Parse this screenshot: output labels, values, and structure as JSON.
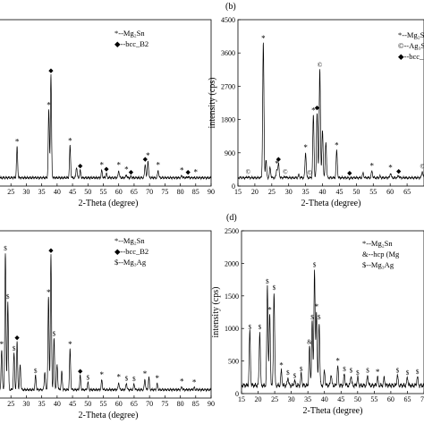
{
  "chart_data": [
    {
      "type": "line",
      "panel": "",
      "xlabel": "2-Theta (degree)",
      "ylabel": "",
      "xlim": [
        20,
        90
      ],
      "ylim": [
        0,
        4500
      ],
      "x_ticks": [
        25,
        30,
        35,
        40,
        45,
        50,
        55,
        60,
        65,
        70,
        75,
        80,
        85,
        90
      ],
      "y_ticks": [],
      "legend": [
        {
          "symbol": "*",
          "label": "*--Mg₂Sn"
        },
        {
          "symbol": "◆",
          "label": "◆--bcc_B2"
        }
      ],
      "series": [
        {
          "peaks": [
            [
              27.0,
              1050
            ],
            [
              38.0,
              3000
            ],
            [
              37.3,
              2050
            ],
            [
              44.2,
              1080
            ],
            [
              46.3,
              520
            ],
            [
              47.5,
              420
            ],
            [
              54.5,
              420
            ],
            [
              56.0,
              340
            ],
            [
              60.0,
              420
            ],
            [
              62.5,
              300
            ],
            [
              64.0,
              260
            ],
            [
              68.6,
              600
            ],
            [
              69.5,
              680
            ],
            [
              72.8,
              420
            ],
            [
              80.5,
              280
            ],
            [
              82.5,
              250
            ],
            [
              85.0,
              220
            ]
          ]
        }
      ],
      "markers": [
        {
          "symbol": "*",
          "x": 27.0
        },
        {
          "symbol": "*",
          "x": 37.3
        },
        {
          "symbol": "◆",
          "x": 38.0
        },
        {
          "symbol": "*",
          "x": 44.2
        },
        {
          "symbol": "◆",
          "x": 47.5
        },
        {
          "symbol": "*",
          "x": 54.5
        },
        {
          "symbol": "◆",
          "x": 56.0
        },
        {
          "symbol": "*",
          "x": 60.0
        },
        {
          "symbol": "*",
          "x": 62.5
        },
        {
          "symbol": "◆",
          "x": 64.0
        },
        {
          "symbol": "◆",
          "x": 68.6
        },
        {
          "symbol": "*",
          "x": 69.5
        },
        {
          "symbol": "*",
          "x": 72.8
        },
        {
          "symbol": "*",
          "x": 80.5
        },
        {
          "symbol": "◆",
          "x": 82.5
        },
        {
          "symbol": "*",
          "x": 85.0
        }
      ]
    },
    {
      "type": "line",
      "panel": "(b)",
      "xlabel": "2-Theta (degree)",
      "ylabel": "intensity (cps)",
      "xlim": [
        15,
        70
      ],
      "ylim": [
        0,
        4500
      ],
      "x_ticks": [
        15,
        20,
        25,
        30,
        35,
        40,
        45,
        50,
        55,
        60,
        65
      ],
      "y_ticks": [
        0,
        900,
        1800,
        2700,
        3600,
        4500
      ],
      "legend": [
        {
          "symbol": "*",
          "label": "*--Mg₂S"
        },
        {
          "symbol": "©",
          "label": "©--Ag₃S"
        },
        {
          "symbol": "◆",
          "label": "◆--bcc_"
        }
      ],
      "series": [
        {
          "peaks": [
            [
              18.0,
              250
            ],
            [
              22.5,
              3850
            ],
            [
              23.3,
              700
            ],
            [
              24.5,
              500
            ],
            [
              26.5,
              460
            ],
            [
              27.0,
              600
            ],
            [
              29.0,
              260
            ],
            [
              33.0,
              300
            ],
            [
              35.0,
              900
            ],
            [
              37.3,
              1900
            ],
            [
              38.4,
              2000
            ],
            [
              39.2,
              3150
            ],
            [
              40.0,
              1500
            ],
            [
              41.0,
              1200
            ],
            [
              44.2,
              950
            ],
            [
              48.0,
              200
            ],
            [
              52.0,
              350
            ],
            [
              54.6,
              400
            ],
            [
              57.0,
              260
            ],
            [
              60.1,
              350
            ],
            [
              62.5,
              280
            ],
            [
              65.0,
              220
            ],
            [
              69.5,
              400
            ]
          ]
        }
      ],
      "markers": [
        {
          "symbol": "©",
          "x": 18.0
        },
        {
          "symbol": "*",
          "x": 22.5
        },
        {
          "symbol": "◆",
          "x": 27.0
        },
        {
          "symbol": "*",
          "x": 26.5
        },
        {
          "symbol": "©",
          "x": 29.0
        },
        {
          "symbol": "*",
          "x": 35.0
        },
        {
          "symbol": "©",
          "x": 36.2
        },
        {
          "symbol": "*",
          "x": 37.3
        },
        {
          "symbol": "◆",
          "x": 38.4
        },
        {
          "symbol": "©",
          "x": 39.2
        },
        {
          "symbol": "*",
          "x": 44.2
        },
        {
          "symbol": "◆",
          "x": 48.0
        },
        {
          "symbol": "*",
          "x": 54.6
        },
        {
          "symbol": "*",
          "x": 60.1
        },
        {
          "symbol": "◆",
          "x": 62.5
        },
        {
          "symbol": "©",
          "x": 69.5
        }
      ]
    },
    {
      "type": "line",
      "panel": "",
      "xlabel": "2-Theta (degree)",
      "ylabel": "",
      "xlim": [
        20,
        90
      ],
      "ylim": [
        0,
        4500
      ],
      "x_ticks": [
        25,
        30,
        35,
        40,
        45,
        50,
        55,
        60,
        65,
        70,
        75,
        80,
        85,
        90
      ],
      "y_ticks": [],
      "legend": [
        {
          "symbol": "*",
          "label": "*--Mg₂Sn"
        },
        {
          "symbol": "◆",
          "label": "◆--bcc_B2"
        },
        {
          "symbol": "$",
          "label": "$--Mg₃Ag"
        }
      ],
      "series": [
        {
          "peaks": [
            [
              22.0,
              1300
            ],
            [
              23.2,
              3900
            ],
            [
              24.0,
              2600
            ],
            [
              26.0,
              1200
            ],
            [
              27.0,
              1500
            ],
            [
              28.0,
              900
            ],
            [
              33.0,
              600
            ],
            [
              36.0,
              700
            ],
            [
              37.2,
              2700
            ],
            [
              38.0,
              3850
            ],
            [
              39.0,
              1600
            ],
            [
              40.0,
              900
            ],
            [
              41.5,
              700
            ],
            [
              44.2,
              1300
            ],
            [
              47.5,
              600
            ],
            [
              50.0,
              420
            ],
            [
              54.5,
              480
            ],
            [
              60.0,
              420
            ],
            [
              62.5,
              400
            ],
            [
              65.0,
              380
            ],
            [
              68.5,
              500
            ],
            [
              69.8,
              550
            ],
            [
              72.5,
              380
            ],
            [
              80.5,
              300
            ],
            [
              84.5,
              280
            ]
          ]
        }
      ],
      "markers": [
        {
          "symbol": "*",
          "x": 22.0
        },
        {
          "symbol": "$",
          "x": 23.2
        },
        {
          "symbol": "$",
          "x": 24.0
        },
        {
          "symbol": "◆",
          "x": 27.0
        },
        {
          "symbol": "$",
          "x": 26.0
        },
        {
          "symbol": "$",
          "x": 33.0
        },
        {
          "symbol": "*",
          "x": 37.2
        },
        {
          "symbol": "◆",
          "x": 38.0
        },
        {
          "symbol": "$",
          "x": 39.0
        },
        {
          "symbol": "*",
          "x": 44.2
        },
        {
          "symbol": "◆",
          "x": 47.5
        },
        {
          "symbol": "$",
          "x": 50.0
        },
        {
          "symbol": "*",
          "x": 54.5
        },
        {
          "symbol": "*",
          "x": 60.0
        },
        {
          "symbol": "$",
          "x": 62.5
        },
        {
          "symbol": "$",
          "x": 65.0
        },
        {
          "symbol": "*",
          "x": 68.5
        },
        {
          "symbol": "*",
          "x": 72.5
        },
        {
          "symbol": "*",
          "x": 80.5
        },
        {
          "symbol": "*",
          "x": 84.5
        }
      ]
    },
    {
      "type": "line",
      "panel": "(d)",
      "xlabel": "2-Theta (degree)",
      "ylabel": "intensity (cps)",
      "xlim": [
        15,
        70
      ],
      "ylim": [
        0,
        2500
      ],
      "x_ticks": [
        15,
        20,
        25,
        30,
        35,
        40,
        45,
        50,
        55,
        60,
        65,
        70
      ],
      "y_ticks": [
        0,
        500,
        1000,
        1500,
        2000,
        2500
      ],
      "legend": [
        {
          "symbol": "*",
          "label": "*--Mg₂Sn"
        },
        {
          "symbol": "&",
          "label": "&--hcp (Mg"
        },
        {
          "symbol": "$",
          "label": "$--Mg₃Ag"
        }
      ],
      "series": [
        {
          "peaks": [
            [
              17.5,
              950
            ],
            [
              20.5,
              950
            ],
            [
              22.8,
              1650
            ],
            [
              23.5,
              1200
            ],
            [
              24.8,
              1550
            ],
            [
              27.0,
              350
            ],
            [
              29.0,
              250
            ],
            [
              31.0,
              200
            ],
            [
              33.0,
              300
            ],
            [
              35.5,
              720
            ],
            [
              36.3,
              1100
            ],
            [
              37.0,
              1900
            ],
            [
              37.6,
              1250
            ],
            [
              38.4,
              1100
            ],
            [
              40.0,
              350
            ],
            [
              42.0,
              300
            ],
            [
              44.0,
              420
            ],
            [
              46.0,
              300
            ],
            [
              48.0,
              280
            ],
            [
              50.0,
              250
            ],
            [
              53.0,
              280
            ],
            [
              56.0,
              250
            ],
            [
              58.0,
              240
            ],
            [
              62.0,
              280
            ],
            [
              65.0,
              250
            ],
            [
              68.0,
              260
            ]
          ]
        }
      ],
      "markers": [
        {
          "symbol": "$",
          "x": 17.5
        },
        {
          "symbol": "$",
          "x": 20.5
        },
        {
          "symbol": "$",
          "x": 22.8
        },
        {
          "symbol": "*",
          "x": 23.5
        },
        {
          "symbol": "$",
          "x": 24.8
        },
        {
          "symbol": "*",
          "x": 27.0
        },
        {
          "symbol": "$",
          "x": 29.0
        },
        {
          "symbol": "$",
          "x": 31.0
        },
        {
          "symbol": "$",
          "x": 33.0
        },
        {
          "symbol": "&",
          "x": 35.5
        },
        {
          "symbol": "$",
          "x": 36.3
        },
        {
          "symbol": "$",
          "x": 37.0
        },
        {
          "symbol": "*",
          "x": 37.6
        },
        {
          "symbol": "$",
          "x": 38.4
        },
        {
          "symbol": "*",
          "x": 44.0
        },
        {
          "symbol": "$",
          "x": 46.0
        },
        {
          "symbol": "$",
          "x": 48.0
        },
        {
          "symbol": "$",
          "x": 50.0
        },
        {
          "symbol": "$",
          "x": 53.0
        },
        {
          "symbol": "*",
          "x": 56.0
        },
        {
          "symbol": "$",
          "x": 62.0
        },
        {
          "symbol": "$",
          "x": 65.0
        },
        {
          "symbol": "$",
          "x": 68.0
        }
      ]
    }
  ]
}
